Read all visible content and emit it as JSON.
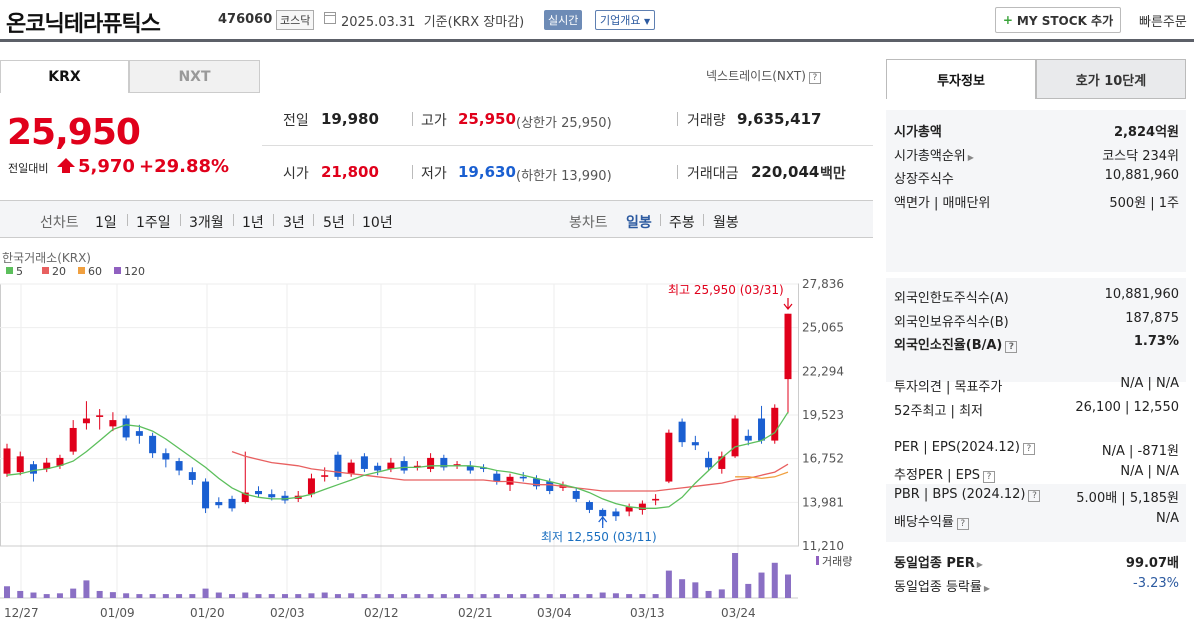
{
  "header": {
    "stock_name": "온코닉테라퓨틱스",
    "stock_code": "476060",
    "market": "코스닥",
    "base_date": "2025.03.31  기준(KRX 장마감)",
    "realtime": "실시간",
    "company_overview": "기업개요",
    "mystock_button": "MY STOCK 추가",
    "quick_order": "빠른주문"
  },
  "tabs": {
    "krx": "KRX",
    "nxt": "NXT",
    "nextrade": "넥스트레이드(NXT)"
  },
  "price": {
    "current": "25,950",
    "vs_label": "전일대비",
    "change": "5,970",
    "change_pct": "+29.88%"
  },
  "quote": {
    "prev_label": "전일",
    "prev": "19,980",
    "high_label": "고가",
    "high": "25,950",
    "upper_limit": "(상한가 25,950)",
    "volume_label": "거래량",
    "volume": "9,635,417",
    "open_label": "시가",
    "open": "21,800",
    "low_label": "저가",
    "low": "19,630",
    "lower_limit": "(하한가 13,990)",
    "amount_label": "거래대금",
    "amount": "220,044",
    "amount_unit": "백만"
  },
  "period_bar": {
    "line_title": "선차트",
    "line_periods": [
      "1일",
      "1주일",
      "3개월",
      "1년",
      "3년",
      "5년",
      "10년"
    ],
    "candle_title": "봉차트",
    "candle_periods": [
      "일봉",
      "주봉",
      "월봉"
    ],
    "active_candle": "일봉"
  },
  "colors": {
    "up": "#e0001b",
    "down": "#1a5fd1",
    "ma5": "#5cbf5c",
    "ma20": "#e86060",
    "ma60": "#f0a040",
    "ma120": "#9060c0"
  },
  "chart_data": {
    "type": "candlestick",
    "source": "한국거래소(KRX)",
    "legend": [
      "5",
      "20",
      "60",
      "120"
    ],
    "y_ticks": [
      "27,836",
      "25,065",
      "22,294",
      "19,523",
      "16,752",
      "13,981",
      "11,210"
    ],
    "x_ticks": [
      "12/27",
      "01/09",
      "01/20",
      "02/03",
      "02/12",
      "02/21",
      "03/04",
      "03/13",
      "03/24"
    ],
    "high_label": "최고 25,950 (03/31)",
    "low_label": "최저 12,550 (03/11)",
    "volume_label": "거래량",
    "candles": [
      {
        "o": 15800,
        "c": 17400,
        "h": 17700,
        "l": 15600
      },
      {
        "o": 15900,
        "c": 16900,
        "h": 17200,
        "l": 15700
      },
      {
        "o": 16400,
        "c": 15800,
        "h": 16600,
        "l": 15300
      },
      {
        "o": 16100,
        "c": 16500,
        "h": 16800,
        "l": 15900
      },
      {
        "o": 16300,
        "c": 16800,
        "h": 17000,
        "l": 16100
      },
      {
        "o": 17200,
        "c": 18700,
        "h": 19200,
        "l": 17000
      },
      {
        "o": 19000,
        "c": 19300,
        "h": 20400,
        "l": 18600
      },
      {
        "o": 19400,
        "c": 19500,
        "h": 19900,
        "l": 18600
      },
      {
        "o": 18800,
        "c": 19200,
        "h": 19700,
        "l": 18500
      },
      {
        "o": 19300,
        "c": 18100,
        "h": 19500,
        "l": 17900
      },
      {
        "o": 18500,
        "c": 18200,
        "h": 18900,
        "l": 17700
      },
      {
        "o": 18200,
        "c": 17100,
        "h": 18400,
        "l": 16800
      },
      {
        "o": 17100,
        "c": 16700,
        "h": 17400,
        "l": 16200
      },
      {
        "o": 16600,
        "c": 16000,
        "h": 16800,
        "l": 15700
      },
      {
        "o": 15900,
        "c": 15400,
        "h": 16200,
        "l": 15100
      },
      {
        "o": 15300,
        "c": 13600,
        "h": 15500,
        "l": 13300
      },
      {
        "o": 14000,
        "c": 13800,
        "h": 14300,
        "l": 13600
      },
      {
        "o": 14200,
        "c": 13600,
        "h": 14400,
        "l": 13400
      },
      {
        "o": 14000,
        "c": 14600,
        "h": 17200,
        "l": 13900
      },
      {
        "o": 14700,
        "c": 14500,
        "h": 15000,
        "l": 14300
      },
      {
        "o": 14500,
        "c": 14300,
        "h": 14800,
        "l": 14100
      },
      {
        "o": 14400,
        "c": 14100,
        "h": 14700,
        "l": 13900
      },
      {
        "o": 14200,
        "c": 14400,
        "h": 14700,
        "l": 14000
      },
      {
        "o": 14500,
        "c": 15500,
        "h": 15800,
        "l": 14300
      },
      {
        "o": 15600,
        "c": 15700,
        "h": 16200,
        "l": 15300
      },
      {
        "o": 17000,
        "c": 15600,
        "h": 17200,
        "l": 15400
      },
      {
        "o": 15800,
        "c": 16500,
        "h": 16700,
        "l": 15600
      },
      {
        "o": 16900,
        "c": 16100,
        "h": 17100,
        "l": 15900
      },
      {
        "o": 16300,
        "c": 16000,
        "h": 16500,
        "l": 15700
      },
      {
        "o": 16100,
        "c": 16500,
        "h": 16800,
        "l": 15900
      },
      {
        "o": 16600,
        "c": 16000,
        "h": 16900,
        "l": 15800
      },
      {
        "o": 16300,
        "c": 16300,
        "h": 16600,
        "l": 16000
      },
      {
        "o": 16100,
        "c": 16800,
        "h": 17100,
        "l": 15900
      },
      {
        "o": 16800,
        "c": 16200,
        "h": 17000,
        "l": 16000
      },
      {
        "o": 16400,
        "c": 16400,
        "h": 16600,
        "l": 16100
      },
      {
        "o": 16300,
        "c": 16000,
        "h": 16600,
        "l": 15800
      },
      {
        "o": 16200,
        "c": 16100,
        "h": 16400,
        "l": 15900
      },
      {
        "o": 15800,
        "c": 15300,
        "h": 16000,
        "l": 15100
      },
      {
        "o": 15100,
        "c": 15600,
        "h": 15800,
        "l": 14700
      },
      {
        "o": 15600,
        "c": 15500,
        "h": 15900,
        "l": 15300
      },
      {
        "o": 15500,
        "c": 15000,
        "h": 15700,
        "l": 14800
      },
      {
        "o": 15300,
        "c": 14700,
        "h": 15500,
        "l": 14500
      },
      {
        "o": 14900,
        "c": 15100,
        "h": 15300,
        "l": 14700
      },
      {
        "o": 14700,
        "c": 14200,
        "h": 14900,
        "l": 14000
      },
      {
        "o": 14000,
        "c": 13500,
        "h": 14100,
        "l": 13300
      },
      {
        "o": 13500,
        "c": 13100,
        "h": 13600,
        "l": 12550
      },
      {
        "o": 13400,
        "c": 13100,
        "h": 13600,
        "l": 12800
      },
      {
        "o": 13400,
        "c": 13700,
        "h": 13900,
        "l": 13100
      },
      {
        "o": 13500,
        "c": 13900,
        "h": 14100,
        "l": 13200
      },
      {
        "o": 14100,
        "c": 14200,
        "h": 14500,
        "l": 13800
      },
      {
        "o": 15300,
        "c": 18400,
        "h": 18600,
        "l": 15200
      },
      {
        "o": 19100,
        "c": 17800,
        "h": 19300,
        "l": 17500
      },
      {
        "o": 17800,
        "c": 17600,
        "h": 18200,
        "l": 17300
      },
      {
        "o": 16800,
        "c": 16200,
        "h": 17200,
        "l": 16000
      },
      {
        "o": 16100,
        "c": 16900,
        "h": 17200,
        "l": 15800
      },
      {
        "o": 16900,
        "c": 19300,
        "h": 19500,
        "l": 16800
      },
      {
        "o": 18200,
        "c": 17900,
        "h": 18600,
        "l": 17600
      },
      {
        "o": 19300,
        "c": 17900,
        "h": 20100,
        "l": 17700
      },
      {
        "o": 17900,
        "c": 19980,
        "h": 20200,
        "l": 17700
      },
      {
        "o": 21800,
        "c": 25950,
        "h": 25950,
        "l": 19630
      }
    ],
    "ma5": [
      15700,
      15800,
      16000,
      16100,
      16300,
      16600,
      17200,
      17900,
      18600,
      18900,
      18800,
      18500,
      18000,
      17400,
      16800,
      16200,
      15500,
      14900,
      14500,
      14300,
      14200,
      14200,
      14300,
      14500,
      14800,
      15100,
      15400,
      15700,
      15900,
      16100,
      16200,
      16200,
      16300,
      16300,
      16300,
      16300,
      16200,
      16000,
      15900,
      15700,
      15500,
      15300,
      15100,
      14900,
      14600,
      14200,
      13900,
      13700,
      13600,
      13600,
      13700,
      14300,
      15200,
      16000,
      16800,
      17500,
      17700,
      17900,
      18400,
      19700
    ],
    "ma20": [
      null,
      null,
      null,
      null,
      null,
      null,
      null,
      null,
      null,
      null,
      null,
      null,
      null,
      null,
      null,
      null,
      null,
      17200,
      16900,
      16700,
      16500,
      16400,
      16300,
      16100,
      16000,
      15900,
      15800,
      15700,
      15600,
      15500,
      15400,
      15400,
      15400,
      15400,
      15400,
      15400,
      15400,
      15300,
      15300,
      15200,
      15100,
      15100,
      15000,
      14900,
      14800,
      14700,
      14700,
      14700,
      14700,
      14700,
      14800,
      14900,
      15000,
      15100,
      15200,
      15400,
      15500,
      15700,
      15900,
      16400
    ],
    "ma60": [
      null,
      null,
      null,
      null,
      null,
      null,
      null,
      null,
      null,
      null,
      null,
      null,
      null,
      null,
      null,
      null,
      null,
      null,
      null,
      null,
      null,
      null,
      null,
      null,
      null,
      null,
      null,
      null,
      null,
      null,
      null,
      null,
      null,
      null,
      null,
      null,
      null,
      null,
      null,
      null,
      null,
      null,
      null,
      null,
      null,
      null,
      null,
      null,
      null,
      null,
      null,
      null,
      null,
      null,
      null,
      15600,
      15600,
      15500,
      15600,
      15900
    ],
    "volume": [
      30,
      18,
      14,
      10,
      12,
      24,
      45,
      18,
      15,
      12,
      10,
      10,
      10,
      10,
      10,
      24,
      14,
      10,
      14,
      10,
      10,
      10,
      10,
      12,
      14,
      10,
      12,
      10,
      10,
      10,
      10,
      10,
      10,
      10,
      10,
      10,
      10,
      10,
      10,
      10,
      10,
      10,
      10,
      10,
      10,
      14,
      12,
      10,
      10,
      10,
      70,
      48,
      40,
      18,
      22,
      115,
      36,
      65,
      90,
      60
    ]
  },
  "right": {
    "tab_invest": "투자정보",
    "tab_hoga": "호가 10단계",
    "rows1": [
      {
        "label": "시가총액",
        "value": "2,824억원",
        "bold": true
      },
      {
        "label": "시가총액순위",
        "value": "코스닥 234위",
        "arrow": true
      },
      {
        "label": "상장주식수",
        "value": "10,881,960"
      },
      {
        "label": "액면가 | 매매단위",
        "value": "500원 | 1주"
      }
    ],
    "rows2": [
      {
        "label": "외국인한도주식수(A)",
        "value": "10,881,960"
      },
      {
        "label": "외국인보유주식수(B)",
        "value": "187,875"
      },
      {
        "label": "외국인소진율(B/A)",
        "value": "1.73%",
        "bold": true,
        "help": true
      }
    ],
    "rows3": [
      {
        "label": "투자의견 | 목표주가",
        "value": "N/A | N/A"
      },
      {
        "label": "52주최고 | 최저",
        "value": "26,100 | 12,550"
      }
    ],
    "rows4": [
      {
        "label": "PER | EPS(2024.12)",
        "value": "N/A | -871원",
        "help": true
      },
      {
        "label": "추정PER | EPS",
        "value": "N/A | N/A",
        "help": true
      },
      {
        "label": "PBR | BPS (2024.12)",
        "value": "5.00배 | 5,185원",
        "help": true
      },
      {
        "label": "배당수익률",
        "value": "N/A",
        "help": true
      }
    ],
    "rows5": [
      {
        "label": "동일업종 PER",
        "value": "99.07배",
        "bold": true,
        "arrow": true
      },
      {
        "label": "동일업종 등락률",
        "value": "-3.23%",
        "arrow": true,
        "blue": true
      }
    ]
  }
}
